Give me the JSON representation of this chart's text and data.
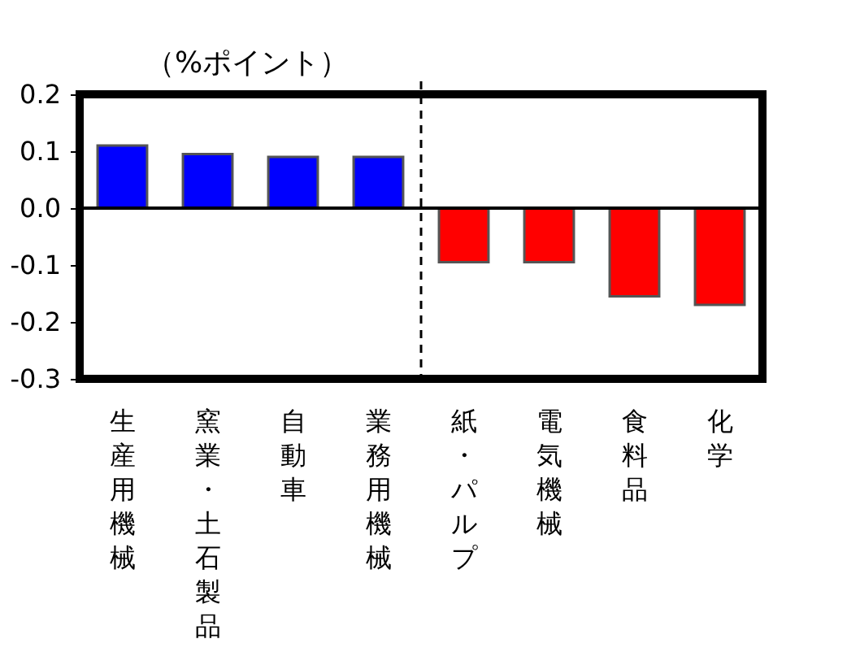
{
  "chart_data": {
    "type": "bar",
    "ylabel": "（%ポイント）",
    "categories": [
      "生産用機械",
      "窯業・土石製品",
      "自動車",
      "業務用機械",
      "紙・パルプ",
      "電気機械",
      "食料品",
      "化学"
    ],
    "values": [
      0.11,
      0.095,
      0.09,
      0.09,
      -0.095,
      -0.095,
      -0.155,
      -0.17
    ],
    "colors": [
      "#0000ff",
      "#0000ff",
      "#0000ff",
      "#0000ff",
      "#ff0000",
      "#ff0000",
      "#ff0000",
      "#ff0000"
    ],
    "ylim": [
      -0.3,
      0.2
    ],
    "yticks": [
      -0.3,
      -0.2,
      -0.1,
      {
        "value": 0,
        "label": "0.0"
      },
      0.1,
      0.2
    ],
    "ref_lines": [
      {
        "axis": "y",
        "value": 0,
        "color": "#000000",
        "line_style": "solid"
      },
      {
        "axis": "x",
        "value": "紙・パルプ",
        "color": "#000000",
        "line_style": "dashed"
      }
    ],
    "grid": false
  }
}
